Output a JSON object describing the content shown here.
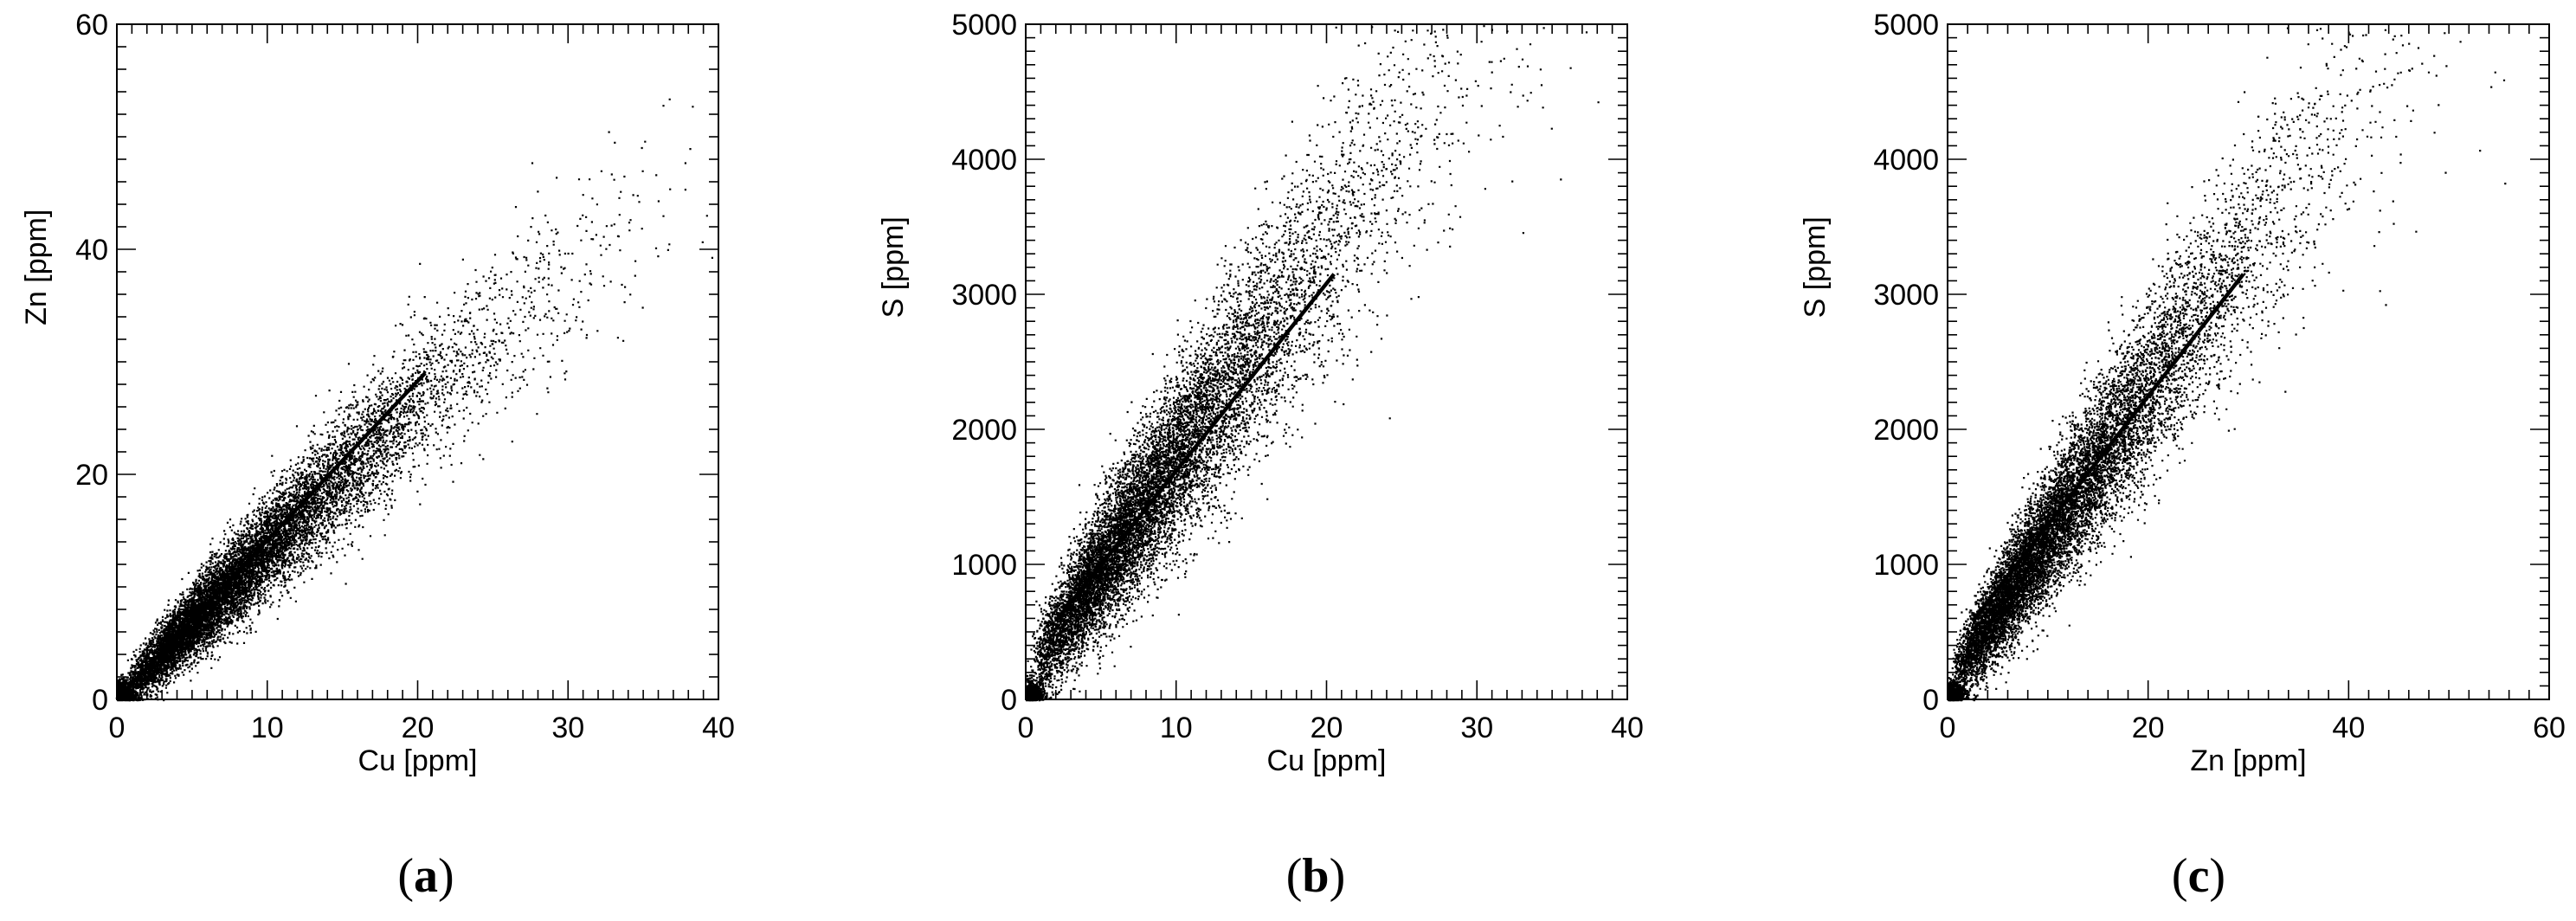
{
  "figure": {
    "captions": [
      {
        "open": "(",
        "letter": "a",
        "close": ")"
      },
      {
        "open": "(",
        "letter": "b",
        "close": ")"
      },
      {
        "open": "(",
        "letter": "c",
        "close": ")"
      }
    ]
  },
  "chart_data": [
    {
      "type": "scatter",
      "title": "",
      "xlabel": "Cu [ppm]",
      "ylabel": "Zn  [ppm]",
      "xlim": [
        0,
        40
      ],
      "ylim": [
        0,
        60
      ],
      "xticks": [
        0,
        10,
        20,
        30,
        40
      ],
      "yticks": [
        0,
        20,
        40,
        60
      ],
      "grid": false,
      "point_color": "#000000",
      "scatter_model": {
        "x_center": [
          1,
          40
        ],
        "slope": 1.4,
        "intercept": 0,
        "spread_y": 3.5,
        "n_points": 11000,
        "x_distribution": "dense near origin, decaying toward 40"
      },
      "fit_line": {
        "x": [
          0,
          20.5
        ],
        "y": [
          0,
          29
        ],
        "color": "#000000"
      }
    },
    {
      "type": "scatter",
      "title": "",
      "xlabel": "Cu [ppm]",
      "ylabel": "S  [ppm]",
      "xlim": [
        0,
        40
      ],
      "ylim": [
        0,
        5000
      ],
      "xticks": [
        0,
        10,
        20,
        30,
        40
      ],
      "yticks": [
        0,
        1000,
        2000,
        3000,
        4000,
        5000
      ],
      "grid": false,
      "point_color": "#000000",
      "scatter_model": {
        "x_center": [
          1,
          40
        ],
        "slope": 170,
        "intercept": 150,
        "spread_y": 520,
        "n_points": 11000,
        "x_distribution": "dense near origin, decaying toward 40"
      },
      "fit_line": {
        "x": [
          2,
          20.5
        ],
        "y": [
          580,
          3150
        ],
        "color": "#000000"
      }
    },
    {
      "type": "scatter",
      "title": "",
      "xlabel": "Zn [ppm]",
      "ylabel": "S  [ppm]",
      "xlim": [
        0,
        60
      ],
      "ylim": [
        0,
        5000
      ],
      "xticks": [
        0,
        20,
        40,
        60
      ],
      "yticks": [
        0,
        1000,
        2000,
        3000,
        4000,
        5000
      ],
      "grid": false,
      "point_color": "#000000",
      "scatter_model": {
        "x_center": [
          1,
          55
        ],
        "slope": 115,
        "intercept": 100,
        "spread_y": 430,
        "n_points": 11000,
        "x_distribution": "dense near origin, decaying toward 55"
      },
      "fit_line": {
        "x": [
          2.5,
          29.5
        ],
        "y": [
          580,
          3150
        ],
        "color": "#000000"
      }
    }
  ]
}
